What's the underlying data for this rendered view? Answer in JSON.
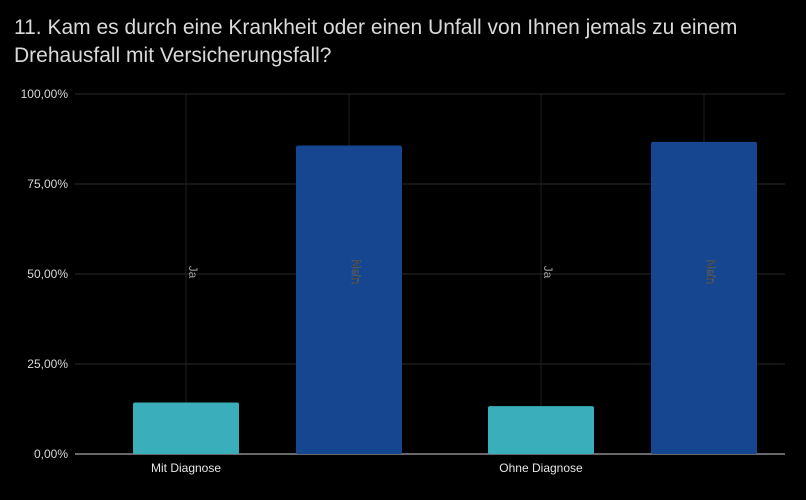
{
  "chart_data": {
    "type": "bar",
    "title": "11. Kam es durch eine Krankheit oder einen Unfall von Ihnen jemals zu einem Drehausfall mit Versicherungsfall?",
    "categories": [
      "Mit Diagnose",
      "Ohne Diagnose"
    ],
    "series": [
      {
        "name": "Ja",
        "color": "#3aafbb",
        "values": [
          14.3,
          13.3
        ]
      },
      {
        "name": "Nein",
        "color": "#15468f",
        "values": [
          85.7,
          86.7
        ]
      }
    ],
    "ylim": [
      0,
      100
    ],
    "yticks": [
      0,
      25,
      50,
      75,
      100
    ],
    "ytick_labels": [
      "0,00%",
      "25,00%",
      "50,00%",
      "75,00%",
      "100,00%"
    ],
    "grid": true,
    "xlabel": "",
    "ylabel": ""
  }
}
